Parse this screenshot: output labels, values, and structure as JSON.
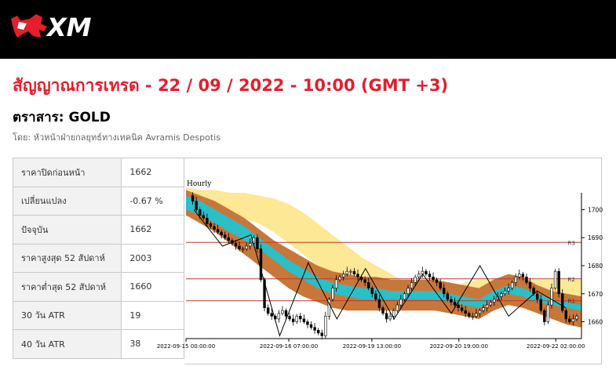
{
  "header": {
    "brand": "XM",
    "logo_icon": "xm-logo-icon"
  },
  "page": {
    "title": "สัญญาณการเทรด - 22 / 09 / 2022 - 10:00 (GMT +3)",
    "instrument": "ตราสาร: GOLD",
    "author": "โดย: หัวหน้าฝ่ายกลยุทธ์ทางเทคนิค Avramis Despotis"
  },
  "stats": [
    {
      "label": "ราคาปิดก่อนหน้า",
      "value": "1662"
    },
    {
      "label": "เปลี่ยนแปลง",
      "value": "-0.67 %"
    },
    {
      "label": "ปัจจุบัน",
      "value": "1662"
    },
    {
      "label": "ราคาสูงสุด 52 สัปดาห์",
      "value": "2003"
    },
    {
      "label": "ราคาต่ำสุด 52 สัปดาห์",
      "value": "1660"
    },
    {
      "label": "30 วัน ATR",
      "value": "19"
    },
    {
      "label": "40 วัน ATR",
      "value": "38"
    }
  ],
  "chart_data": {
    "type": "line",
    "timeframe": "Hourly",
    "x_ticks": [
      "2022-09-15 00:00:00",
      "2022-09-16 07:00:00",
      "2022-09-19 13:00:00",
      "2022-09-20 19:00:00",
      "2022-09-22 02:00:00"
    ],
    "y_ticks": [
      1660,
      1670,
      1680,
      1690,
      1700
    ],
    "ylim": [
      1654,
      1706
    ],
    "levels": [
      {
        "name": "R3",
        "value": 1688.3
      },
      {
        "name": "R2",
        "value": 1675.3
      },
      {
        "name": "R1",
        "value": 1667.5
      }
    ],
    "price": [
      1705,
      1703,
      1700,
      1698,
      1697,
      1695,
      1694,
      1693,
      1692,
      1691,
      1690,
      1689,
      1688,
      1687,
      1686,
      1686,
      1687,
      1688,
      1690,
      1686,
      1675,
      1665,
      1663,
      1662,
      1661,
      1663,
      1664,
      1662,
      1661,
      1660,
      1662,
      1661,
      1660,
      1659,
      1658,
      1657,
      1656,
      1655,
      1662,
      1668,
      1672,
      1675,
      1676,
      1677,
      1678,
      1678,
      1677,
      1676,
      1675,
      1674,
      1672,
      1670,
      1668,
      1665,
      1663,
      1661,
      1662,
      1664,
      1666,
      1668,
      1670,
      1672,
      1674,
      1676,
      1677,
      1678,
      1677,
      1676,
      1675,
      1674,
      1672,
      1670,
      1668,
      1667,
      1666,
      1665,
      1664,
      1663,
      1662,
      1662,
      1663,
      1664,
      1665,
      1666,
      1667,
      1668,
      1669,
      1670,
      1671,
      1672,
      1674,
      1676,
      1677,
      1676,
      1674,
      1672,
      1670,
      1668,
      1664,
      1660,
      1666,
      1672,
      1678,
      1670,
      1664,
      1661,
      1660,
      1661,
      1662
    ],
    "bands": {
      "yellow_upper": [
        1708,
        1707,
        1707,
        1706,
        1706,
        1705,
        1704,
        1702,
        1699,
        1695,
        1691,
        1687,
        1683,
        1680,
        1677,
        1674,
        1672,
        1671,
        1671,
        1674,
        1675,
        1675,
        1675,
        1675,
        1675,
        1675,
        1675,
        1675
      ],
      "yellow_lower": [
        1701,
        1700,
        1699,
        1698,
        1697,
        1695,
        1692,
        1688,
        1684,
        1680,
        1677,
        1674,
        1671,
        1669,
        1668,
        1667,
        1666,
        1666,
        1666,
        1668,
        1670,
        1672,
        1672,
        1670,
        1668,
        1667,
        1666,
        1665
      ],
      "orange_upper": [
        1707,
        1705,
        1703,
        1700,
        1697,
        1693,
        1689,
        1686,
        1683,
        1680,
        1678,
        1677,
        1676,
        1676,
        1675,
        1675,
        1675,
        1675,
        1674,
        1673,
        1672,
        1675,
        1677,
        1676,
        1673,
        1671,
        1670,
        1669
      ],
      "cyan_upper": [
        1705,
        1703,
        1700,
        1697,
        1694,
        1690,
        1686,
        1682,
        1679,
        1676,
        1674,
        1673,
        1672,
        1672,
        1671,
        1671,
        1671,
        1671,
        1670,
        1669,
        1668,
        1671,
        1673,
        1672,
        1670,
        1668,
        1667,
        1666
      ],
      "cyan_lower": [
        1700,
        1698,
        1695,
        1692,
        1689,
        1686,
        1682,
        1678,
        1675,
        1672,
        1670,
        1669,
        1668,
        1668,
        1668,
        1668,
        1668,
        1668,
        1667,
        1666,
        1665,
        1668,
        1670,
        1669,
        1667,
        1666,
        1665,
        1664
      ],
      "orange_lower": [
        1698,
        1695,
        1692,
        1688,
        1684,
        1680,
        1676,
        1672,
        1669,
        1667,
        1665,
        1664,
        1664,
        1664,
        1664,
        1664,
        1664,
        1664,
        1663,
        1662,
        1661,
        1664,
        1666,
        1665,
        1663,
        1661,
        1659,
        1658
      ]
    },
    "zigzag": [
      1700,
      1687,
      1691,
      1655,
      1681,
      1661,
      1679,
      1661,
      1677,
      1663,
      1680,
      1662,
      1671,
      1665
    ]
  }
}
